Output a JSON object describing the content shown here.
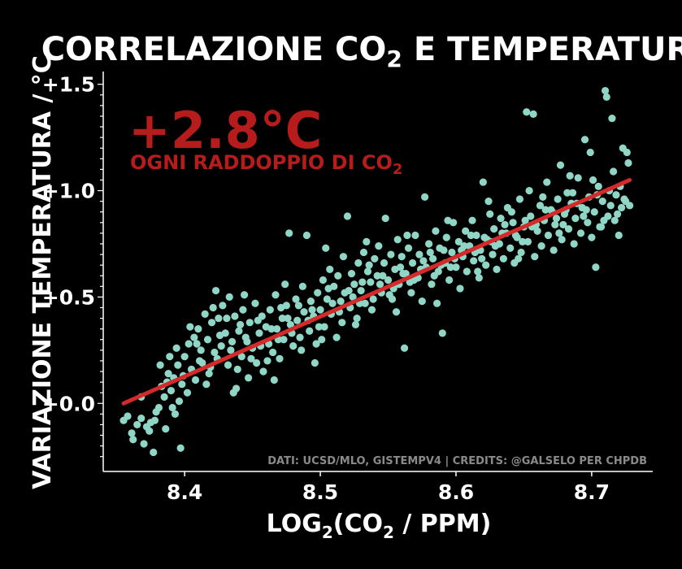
{
  "colors": {
    "background": "#000000",
    "axis": "#ffffff",
    "points": "#8fd6c6",
    "trend": "#d42a2a",
    "annotation": "#b71c1c",
    "credits": "#8a8a8a"
  },
  "title": {
    "main": "CORRELAZIONE CO",
    "sub": "2",
    "rest": " E TEMPERATURA"
  },
  "xlabel": {
    "pre": "LOG",
    "sub1": "2",
    "mid": "(CO",
    "sub2": "2",
    "post": " / PPM)"
  },
  "ylabel": "VARIAZIONE TEMPERATURA / °C",
  "annotation": {
    "value": "+2.8°C",
    "line": "OGNI RADDOPPIO DI CO",
    "sub": "2"
  },
  "credits": "DATI: UCSD/MLO, GISTEMPV4 | CREDITS: @GALSELO PER CHPDB",
  "chart_data": {
    "type": "scatter",
    "xlim": [
      8.34,
      8.745
    ],
    "ylim": [
      -0.32,
      1.56
    ],
    "x_ticks": [
      8.4,
      8.5,
      8.6,
      8.7
    ],
    "x_tick_labels": [
      "8.4",
      "8.5",
      "8.6",
      "8.7"
    ],
    "y_ticks": [
      0.0,
      0.5,
      1.0,
      1.5
    ],
    "y_tick_labels": [
      "+0.0",
      "+0.5",
      "+1.0",
      "+1.5"
    ],
    "grid": false,
    "trend": {
      "x": [
        8.355,
        8.728
      ],
      "y": [
        0.0,
        1.05
      ]
    },
    "points": [
      [
        8.355,
        -0.08
      ],
      [
        8.358,
        -0.06
      ],
      [
        8.362,
        -0.17
      ],
      [
        8.365,
        -0.1
      ],
      [
        8.368,
        -0.07
      ],
      [
        8.37,
        -0.19
      ],
      [
        8.372,
        -0.11
      ],
      [
        8.375,
        -0.09
      ],
      [
        8.377,
        -0.23
      ],
      [
        8.379,
        -0.04
      ],
      [
        8.381,
        -0.02
      ],
      [
        8.383,
        0.08
      ],
      [
        8.385,
        0.03
      ],
      [
        8.386,
        -0.12
      ],
      [
        8.388,
        0.14
      ],
      [
        8.39,
        0.06
      ],
      [
        8.392,
        0.12
      ],
      [
        8.393,
        -0.05
      ],
      [
        8.395,
        0.18
      ],
      [
        8.397,
        -0.21
      ],
      [
        8.398,
        0.09
      ],
      [
        8.4,
        0.22
      ],
      [
        8.402,
        0.05
      ],
      [
        8.403,
        0.28
      ],
      [
        8.405,
        0.16
      ],
      [
        8.407,
        0.31
      ],
      [
        8.408,
        0.11
      ],
      [
        8.41,
        0.35
      ],
      [
        8.412,
        0.25
      ],
      [
        8.413,
        0.19
      ],
      [
        8.415,
        0.42
      ],
      [
        8.417,
        0.3
      ],
      [
        8.418,
        0.14
      ],
      [
        8.42,
        0.38
      ],
      [
        8.422,
        0.24
      ],
      [
        8.423,
        0.53
      ],
      [
        8.425,
        0.4
      ],
      [
        8.427,
        0.27
      ],
      [
        8.428,
        0.46
      ],
      [
        8.43,
        0.33
      ],
      [
        8.432,
        0.18
      ],
      [
        8.433,
        0.5
      ],
      [
        8.435,
        0.29
      ],
      [
        8.437,
        0.41
      ],
      [
        8.438,
        0.07
      ],
      [
        8.44,
        0.34
      ],
      [
        8.442,
        0.22
      ],
      [
        8.443,
        0.44
      ],
      [
        8.445,
        0.31
      ],
      [
        8.447,
        0.12
      ],
      [
        8.448,
        0.38
      ],
      [
        8.45,
        0.26
      ],
      [
        8.452,
        0.47
      ],
      [
        8.453,
        0.19
      ],
      [
        8.455,
        0.33
      ],
      [
        8.457,
        0.41
      ],
      [
        8.458,
        0.15
      ],
      [
        8.46,
        0.36
      ],
      [
        8.462,
        0.28
      ],
      [
        8.463,
        0.44
      ],
      [
        8.465,
        0.24
      ],
      [
        8.467,
        0.51
      ],
      [
        8.468,
        0.35
      ],
      [
        8.47,
        0.21
      ],
      [
        8.472,
        0.4
      ],
      [
        8.473,
        0.3
      ],
      [
        8.475,
        0.46
      ],
      [
        8.477,
        0.8
      ],
      [
        8.478,
        0.37
      ],
      [
        8.48,
        0.27
      ],
      [
        8.482,
        0.49
      ],
      [
        8.483,
        0.39
      ],
      [
        8.485,
        0.31
      ],
      [
        8.487,
        0.55
      ],
      [
        8.488,
        0.43
      ],
      [
        8.49,
        0.79
      ],
      [
        8.492,
        0.34
      ],
      [
        8.493,
        0.48
      ],
      [
        8.495,
        0.41
      ],
      [
        8.497,
        0.28
      ],
      [
        8.498,
        0.52
      ],
      [
        8.5,
        0.44
      ],
      [
        8.502,
        0.58
      ],
      [
        8.503,
        0.36
      ],
      [
        8.505,
        0.49
      ],
      [
        8.507,
        0.63
      ],
      [
        8.508,
        0.42
      ],
      [
        8.51,
        0.55
      ],
      [
        8.512,
        0.31
      ],
      [
        8.513,
        0.6
      ],
      [
        8.515,
        0.48
      ],
      [
        8.517,
        0.69
      ],
      [
        8.518,
        0.52
      ],
      [
        8.52,
        0.88
      ],
      [
        8.522,
        0.45
      ],
      [
        8.523,
        0.61
      ],
      [
        8.525,
        0.56
      ],
      [
        8.527,
        0.4
      ],
      [
        8.528,
        0.66
      ],
      [
        8.53,
        0.53
      ],
      [
        8.532,
        0.71
      ],
      [
        8.533,
        0.47
      ],
      [
        8.535,
        0.62
      ],
      [
        8.537,
        0.57
      ],
      [
        8.538,
        0.44
      ],
      [
        8.54,
        0.68
      ],
      [
        8.542,
        0.6
      ],
      [
        8.543,
        0.74
      ],
      [
        8.545,
        0.52
      ],
      [
        8.547,
        0.66
      ],
      [
        8.548,
        0.87
      ],
      [
        8.55,
        0.58
      ],
      [
        8.552,
        0.7
      ],
      [
        8.553,
        0.49
      ],
      [
        8.555,
        0.63
      ],
      [
        8.557,
        0.77
      ],
      [
        8.558,
        0.56
      ],
      [
        8.56,
        0.69
      ],
      [
        8.562,
        0.26
      ],
      [
        8.563,
        0.61
      ],
      [
        8.565,
        0.73
      ],
      [
        8.567,
        0.52
      ],
      [
        8.568,
        0.66
      ],
      [
        8.57,
        0.79
      ],
      [
        8.572,
        0.59
      ],
      [
        8.573,
        0.7
      ],
      [
        8.575,
        0.48
      ],
      [
        8.577,
        0.97
      ],
      [
        8.578,
        0.64
      ],
      [
        8.58,
        0.75
      ],
      [
        8.582,
        0.56
      ],
      [
        8.583,
        0.68
      ],
      [
        8.585,
        0.81
      ],
      [
        8.587,
        0.62
      ],
      [
        8.588,
        0.73
      ],
      [
        8.59,
        0.33
      ],
      [
        8.592,
        0.66
      ],
      [
        8.593,
        0.78
      ],
      [
        8.595,
        0.58
      ],
      [
        8.597,
        0.71
      ],
      [
        8.598,
        0.85
      ],
      [
        8.6,
        0.64
      ],
      [
        8.602,
        0.76
      ],
      [
        8.603,
        0.54
      ],
      [
        8.605,
        0.69
      ],
      [
        8.607,
        0.81
      ],
      [
        8.608,
        0.62
      ],
      [
        8.61,
        0.74
      ],
      [
        8.612,
        0.86
      ],
      [
        8.613,
        0.67
      ],
      [
        8.615,
        0.79
      ],
      [
        8.617,
        0.59
      ],
      [
        8.618,
        0.72
      ],
      [
        8.62,
        1.04
      ],
      [
        8.622,
        0.65
      ],
      [
        8.623,
        0.77
      ],
      [
        8.625,
        0.89
      ],
      [
        8.627,
        0.7
      ],
      [
        8.628,
        0.82
      ],
      [
        8.63,
        0.63
      ],
      [
        8.632,
        0.75
      ],
      [
        8.633,
        0.87
      ],
      [
        8.635,
        0.68
      ],
      [
        8.637,
        0.8
      ],
      [
        8.638,
        0.92
      ],
      [
        8.64,
        0.73
      ],
      [
        8.642,
        0.85
      ],
      [
        8.643,
        0.66
      ],
      [
        8.645,
        0.78
      ],
      [
        8.647,
        0.96
      ],
      [
        8.648,
        0.71
      ],
      [
        8.65,
        0.83
      ],
      [
        8.652,
        1.37
      ],
      [
        8.653,
        0.76
      ],
      [
        8.655,
        0.88
      ],
      [
        8.657,
        1.36
      ],
      [
        8.658,
        0.69
      ],
      [
        8.66,
        0.81
      ],
      [
        8.662,
        0.93
      ],
      [
        8.663,
        0.74
      ],
      [
        8.665,
        0.86
      ],
      [
        8.667,
        1.04
      ],
      [
        8.668,
        0.79
      ],
      [
        8.67,
        0.91
      ],
      [
        8.672,
        0.72
      ],
      [
        8.673,
        0.84
      ],
      [
        8.675,
        0.96
      ],
      [
        8.677,
        1.12
      ],
      [
        8.678,
        0.77
      ],
      [
        8.68,
        0.89
      ],
      [
        8.682,
        0.99
      ],
      [
        8.683,
        0.82
      ],
      [
        8.685,
        0.94
      ],
      [
        8.687,
        0.75
      ],
      [
        8.688,
        0.87
      ],
      [
        8.69,
        1.06
      ],
      [
        8.692,
        0.8
      ],
      [
        8.693,
        0.92
      ],
      [
        8.695,
        1.24
      ],
      [
        8.697,
        0.85
      ],
      [
        8.698,
        0.97
      ],
      [
        8.7,
        0.78
      ],
      [
        8.702,
        0.9
      ],
      [
        8.703,
        0.64
      ],
      [
        8.705,
        1.02
      ],
      [
        8.707,
        0.83
      ],
      [
        8.708,
        0.95
      ],
      [
        8.71,
        1.47
      ],
      [
        8.712,
        0.88
      ],
      [
        8.713,
        1.0
      ],
      [
        8.715,
        1.34
      ],
      [
        8.717,
        0.86
      ],
      [
        8.718,
        0.98
      ],
      [
        8.72,
        0.79
      ],
      [
        8.722,
        0.92
      ],
      [
        8.723,
        1.2
      ],
      [
        8.725,
        0.95
      ],
      [
        8.727,
        1.13
      ],
      [
        8.728,
        0.93
      ],
      [
        8.711,
        1.44
      ],
      [
        8.716,
        1.09
      ],
      [
        8.726,
        1.18
      ],
      [
        8.368,
        0.03
      ],
      [
        8.374,
        -0.13
      ],
      [
        8.382,
        0.18
      ],
      [
        8.389,
        0.22
      ],
      [
        8.396,
        0.01
      ],
      [
        8.404,
        0.36
      ],
      [
        8.411,
        0.2
      ],
      [
        8.419,
        0.17
      ],
      [
        8.426,
        0.32
      ],
      [
        8.434,
        0.25
      ],
      [
        8.441,
        0.37
      ],
      [
        8.449,
        0.21
      ],
      [
        8.456,
        0.27
      ],
      [
        8.464,
        0.35
      ],
      [
        8.471,
        0.45
      ],
      [
        8.479,
        0.33
      ],
      [
        8.486,
        0.25
      ],
      [
        8.494,
        0.44
      ],
      [
        8.501,
        0.3
      ],
      [
        8.509,
        0.47
      ],
      [
        8.516,
        0.38
      ],
      [
        8.524,
        0.5
      ],
      [
        8.531,
        0.57
      ],
      [
        8.539,
        0.49
      ],
      [
        8.546,
        0.6
      ],
      [
        8.554,
        0.54
      ],
      [
        8.561,
        0.61
      ],
      [
        8.569,
        0.58
      ],
      [
        8.576,
        0.67
      ],
      [
        8.584,
        0.6
      ],
      [
        8.591,
        0.72
      ],
      [
        8.599,
        0.68
      ],
      [
        8.606,
        0.74
      ],
      [
        8.614,
        0.71
      ],
      [
        8.621,
        0.78
      ],
      [
        8.629,
        0.74
      ],
      [
        8.636,
        0.84
      ],
      [
        8.644,
        0.79
      ],
      [
        8.651,
        0.86
      ],
      [
        8.659,
        0.84
      ],
      [
        8.666,
        0.91
      ],
      [
        8.674,
        0.87
      ],
      [
        8.681,
        0.91
      ],
      [
        8.689,
        0.94
      ],
      [
        8.696,
        0.91
      ],
      [
        8.704,
        0.98
      ],
      [
        8.714,
        0.93
      ],
      [
        8.721,
        1.02
      ],
      [
        8.378,
        -0.08
      ],
      [
        8.387,
        0.1
      ],
      [
        8.399,
        0.13
      ],
      [
        8.409,
        0.28
      ],
      [
        8.416,
        0.09
      ],
      [
        8.424,
        0.21
      ],
      [
        8.431,
        0.4
      ],
      [
        8.439,
        0.16
      ],
      [
        8.446,
        0.29
      ],
      [
        8.454,
        0.39
      ],
      [
        8.461,
        0.2
      ],
      [
        8.469,
        0.3
      ],
      [
        8.476,
        0.4
      ],
      [
        8.484,
        0.46
      ],
      [
        8.491,
        0.39
      ],
      [
        8.499,
        0.36
      ],
      [
        8.506,
        0.54
      ],
      [
        8.514,
        0.43
      ],
      [
        8.521,
        0.53
      ],
      [
        8.529,
        0.47
      ],
      [
        8.536,
        0.65
      ],
      [
        8.544,
        0.56
      ],
      [
        8.551,
        0.51
      ],
      [
        8.559,
        0.64
      ],
      [
        8.566,
        0.57
      ],
      [
        8.574,
        0.63
      ],
      [
        8.581,
        0.71
      ],
      [
        8.589,
        0.65
      ],
      [
        8.596,
        0.64
      ],
      [
        8.604,
        0.72
      ],
      [
        8.611,
        0.79
      ],
      [
        8.619,
        0.68
      ],
      [
        8.626,
        0.76
      ],
      [
        8.634,
        0.8
      ],
      [
        8.641,
        0.9
      ],
      [
        8.649,
        0.76
      ],
      [
        8.656,
        0.83
      ],
      [
        8.664,
        0.97
      ],
      [
        8.671,
        0.9
      ],
      [
        8.679,
        0.84
      ],
      [
        8.686,
        0.99
      ],
      [
        8.694,
        0.88
      ],
      [
        8.701,
        1.05
      ],
      [
        8.709,
        0.86
      ],
      [
        8.719,
        0.89
      ],
      [
        8.724,
        0.96
      ],
      [
        8.361,
        -0.14
      ],
      [
        8.391,
        -0.02
      ],
      [
        8.436,
        0.05
      ],
      [
        8.466,
        0.11
      ],
      [
        8.496,
        0.19
      ],
      [
        8.526,
        0.37
      ],
      [
        8.556,
        0.43
      ],
      [
        8.586,
        0.47
      ],
      [
        8.616,
        0.62
      ],
      [
        8.646,
        0.68
      ],
      [
        8.676,
        0.8
      ],
      [
        8.706,
        0.83
      ],
      [
        8.394,
        0.26
      ],
      [
        8.421,
        0.45
      ],
      [
        8.444,
        0.51
      ],
      [
        8.474,
        0.56
      ],
      [
        8.504,
        0.73
      ],
      [
        8.534,
        0.76
      ],
      [
        8.564,
        0.79
      ],
      [
        8.594,
        0.86
      ],
      [
        8.624,
        0.95
      ],
      [
        8.654,
        1.0
      ],
      [
        8.684,
        1.07
      ],
      [
        8.699,
        1.18
      ]
    ]
  }
}
